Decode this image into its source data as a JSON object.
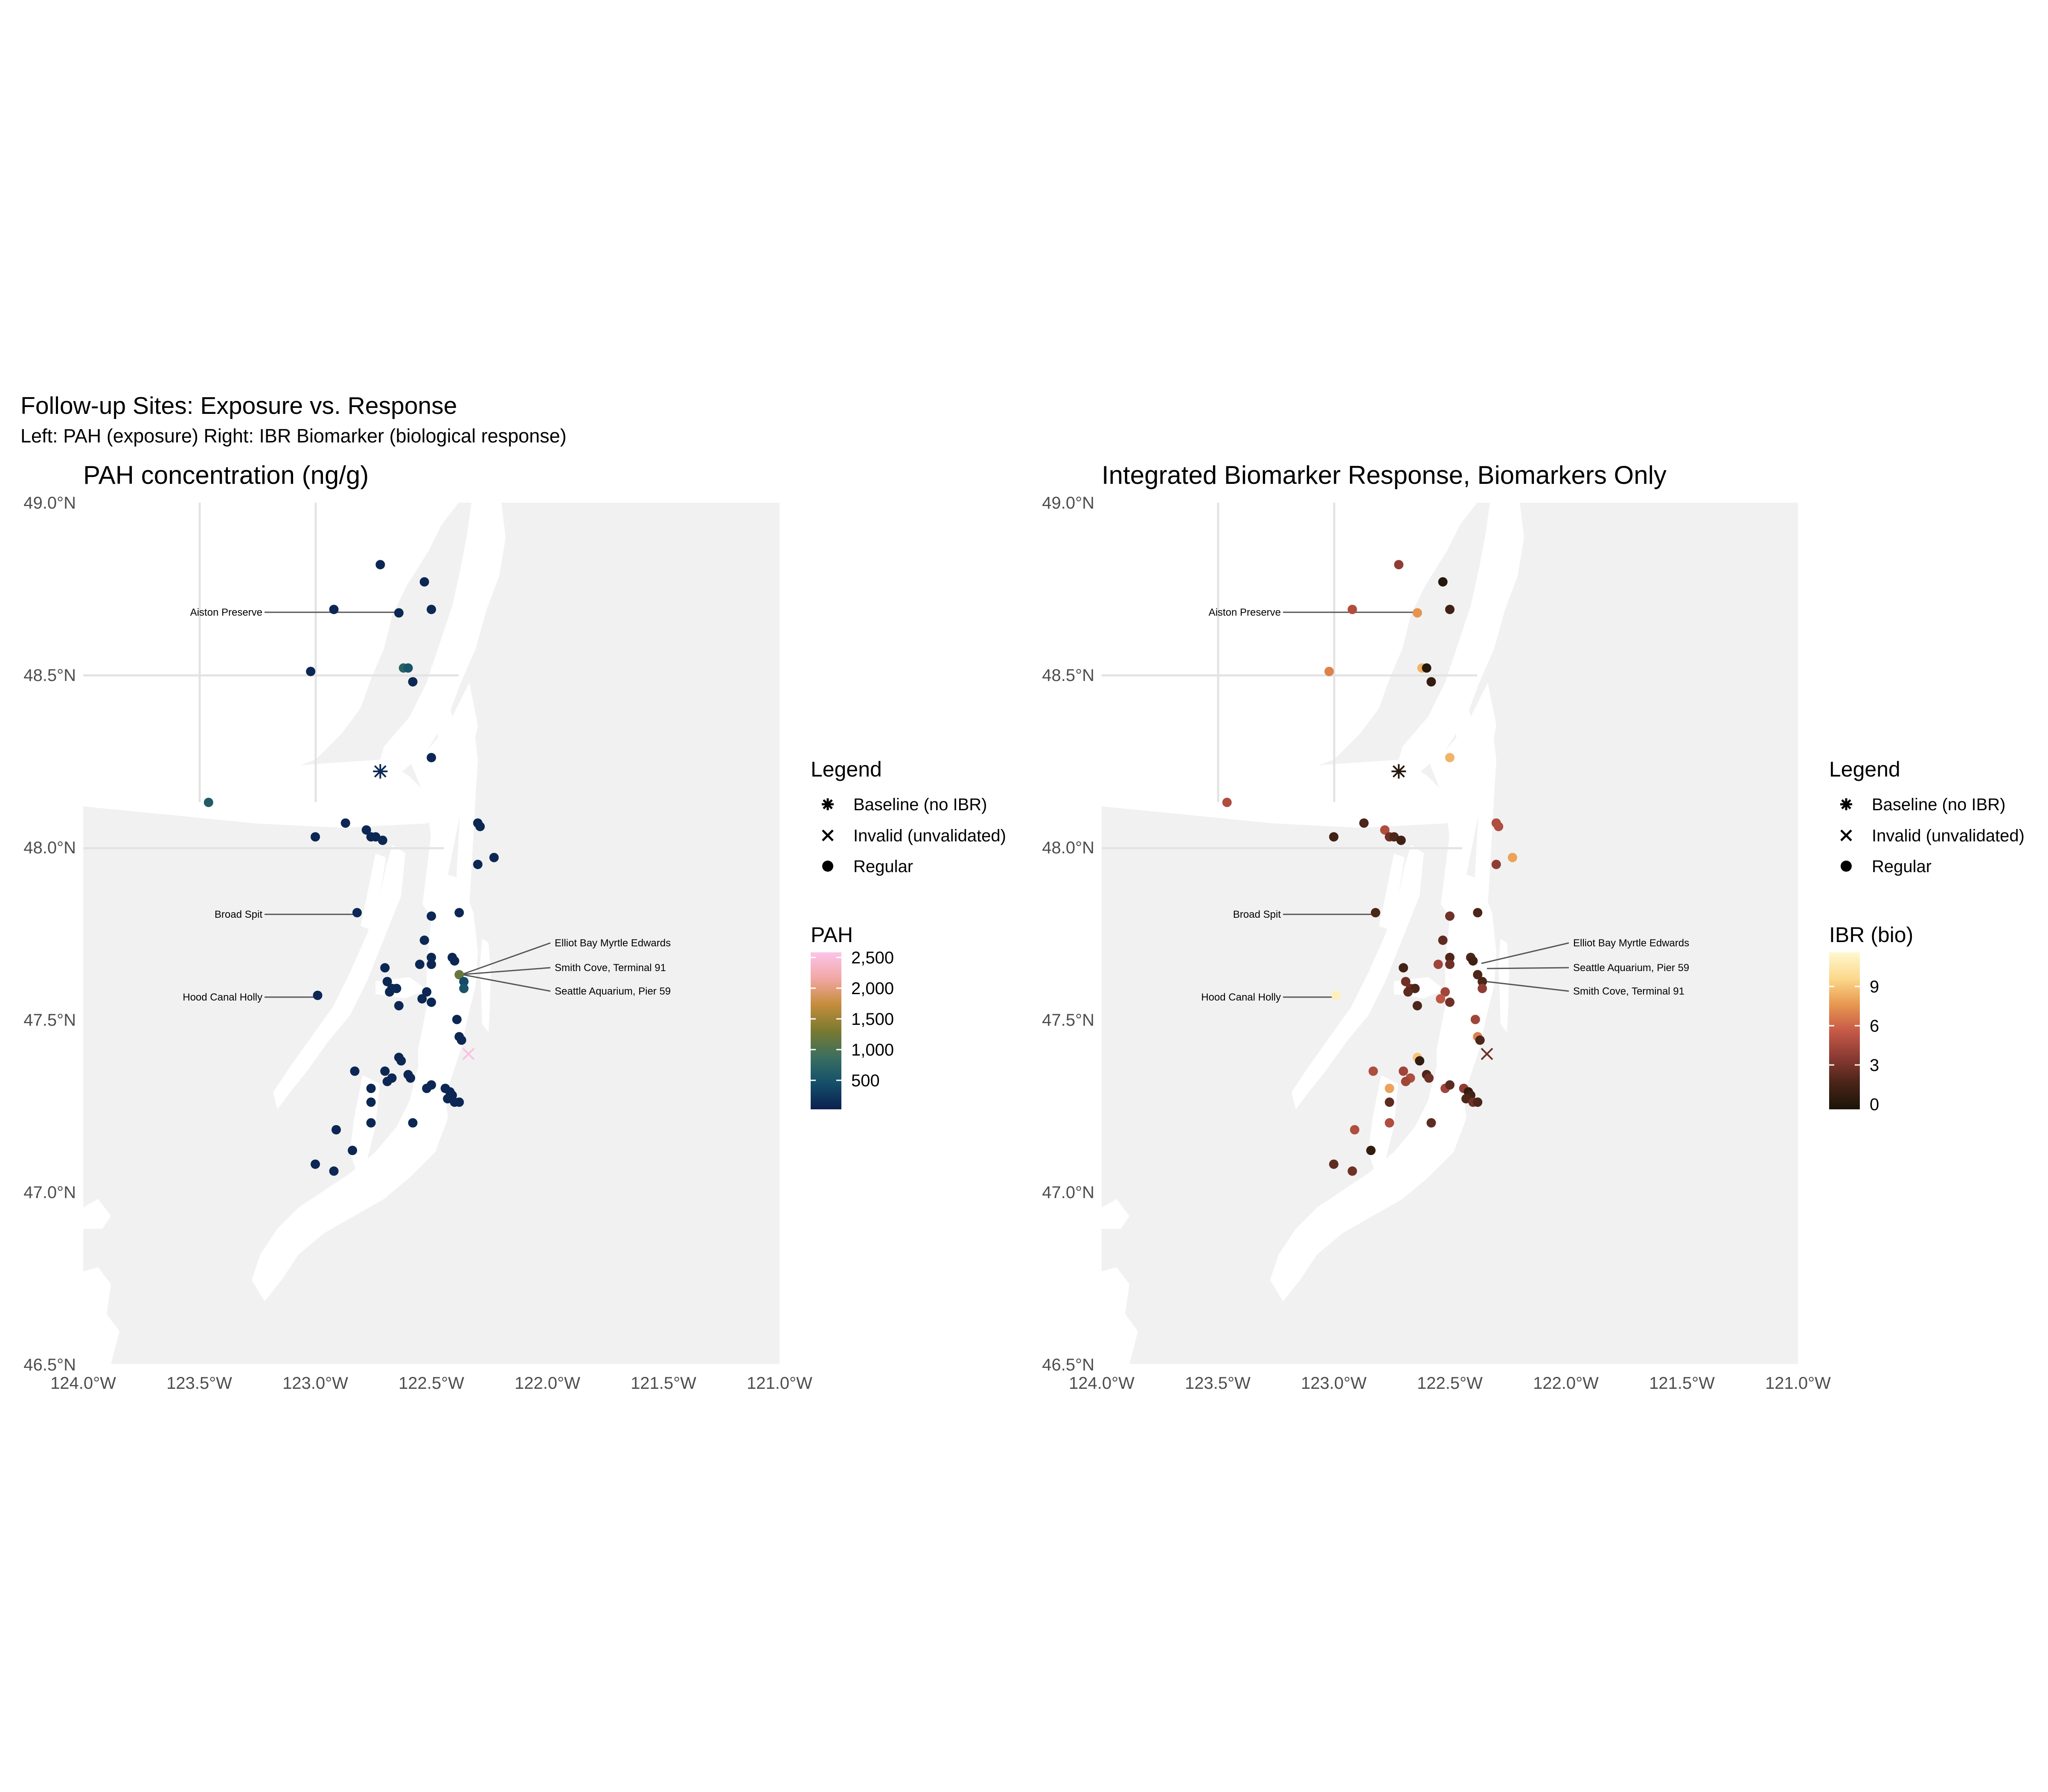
{
  "figure": {
    "title": "Follow-up Sites: Exposure vs. Response",
    "subtitle": "Left: PAH (exposure)   Right: IBR Biomarker (biological response)"
  },
  "axes": {
    "x_ticks": [
      "124.0°W",
      "123.5°W",
      "123.0°W",
      "122.5°W",
      "122.0°W",
      "121.5°W",
      "121.0°W"
    ],
    "y_ticks": [
      "49.0°N",
      "48.5°N",
      "48.0°N",
      "47.5°N",
      "47.0°N",
      "46.5°N"
    ],
    "xlim": [
      -124.0,
      -121.0
    ],
    "ylim": [
      46.5,
      49.0
    ],
    "grid": true
  },
  "shape_legend": {
    "title": "Legend",
    "items": [
      {
        "symbol": "asterisk",
        "label": "Baseline (no IBR)"
      },
      {
        "symbol": "cross",
        "label": "Invalid (unvalidated)"
      },
      {
        "symbol": "dot",
        "label": "Regular"
      }
    ]
  },
  "colors": {
    "land": "#f1f1f1",
    "water": "#ffffff",
    "grid": "#e3e3e3",
    "callout_line": "#555555",
    "pah_scale": [
      "#0b2050",
      "#14506a",
      "#3a6e60",
      "#7a7a30",
      "#c68d3c",
      "#f1a7a3",
      "#fcc4ea"
    ],
    "ibr_scale": [
      "#1a1408",
      "#4a2418",
      "#8a3a32",
      "#c65a48",
      "#e89850",
      "#fbd88a",
      "#fff8d0"
    ]
  },
  "chart_data": [
    {
      "type": "scatter",
      "title": "PAH concentration (ng/g)",
      "color_legend": {
        "title": "PAH",
        "ticks": [
          "2,500",
          "2,000",
          "1,500",
          "1,000",
          "500"
        ],
        "range": [
          0,
          2650
        ]
      },
      "callouts": [
        "Aiston Preserve",
        "Broad Spit",
        "Hood Canal Holly",
        "Elliot Bay Myrtle Edwards",
        "Smith Cove, Terminal 91",
        "Seattle Aquarium, Pier 59"
      ],
      "sites": [
        {
          "lon": -122.72,
          "lat": 48.82,
          "v": 60,
          "shape": "dot"
        },
        {
          "lon": -122.53,
          "lat": 48.77,
          "v": 60,
          "shape": "dot"
        },
        {
          "lon": -122.5,
          "lat": 48.69,
          "v": 70,
          "shape": "dot"
        },
        {
          "lon": -122.92,
          "lat": 48.69,
          "v": 60,
          "shape": "dot"
        },
        {
          "lon": -122.64,
          "lat": 48.68,
          "v": 60,
          "shape": "dot"
        },
        {
          "lon": -122.62,
          "lat": 48.52,
          "v": 700,
          "shape": "dot"
        },
        {
          "lon": -122.6,
          "lat": 48.52,
          "v": 500,
          "shape": "dot"
        },
        {
          "lon": -122.58,
          "lat": 48.48,
          "v": 60,
          "shape": "dot"
        },
        {
          "lon": -123.02,
          "lat": 48.51,
          "v": 60,
          "shape": "dot"
        },
        {
          "lon": -122.5,
          "lat": 48.26,
          "v": 60,
          "shape": "dot"
        },
        {
          "lon": -122.72,
          "lat": 48.22,
          "v": 80,
          "shape": "asterisk"
        },
        {
          "lon": -123.46,
          "lat": 48.13,
          "v": 600,
          "shape": "dot"
        },
        {
          "lon": -122.3,
          "lat": 48.07,
          "v": 60,
          "shape": "dot"
        },
        {
          "lon": -122.29,
          "lat": 48.06,
          "v": 60,
          "shape": "dot"
        },
        {
          "lon": -122.87,
          "lat": 48.07,
          "v": 60,
          "shape": "dot"
        },
        {
          "lon": -122.78,
          "lat": 48.05,
          "v": 60,
          "shape": "dot"
        },
        {
          "lon": -122.76,
          "lat": 48.03,
          "v": 60,
          "shape": "dot"
        },
        {
          "lon": -122.74,
          "lat": 48.03,
          "v": 60,
          "shape": "dot"
        },
        {
          "lon": -122.71,
          "lat": 48.02,
          "v": 60,
          "shape": "dot"
        },
        {
          "lon": -123.0,
          "lat": 48.03,
          "v": 60,
          "shape": "dot"
        },
        {
          "lon": -122.23,
          "lat": 47.97,
          "v": 60,
          "shape": "dot"
        },
        {
          "lon": -122.3,
          "lat": 47.95,
          "v": 60,
          "shape": "dot"
        },
        {
          "lon": -122.38,
          "lat": 47.81,
          "v": 60,
          "shape": "dot"
        },
        {
          "lon": -122.5,
          "lat": 47.8,
          "v": 60,
          "shape": "dot"
        },
        {
          "lon": -122.82,
          "lat": 47.81,
          "v": 60,
          "shape": "dot"
        },
        {
          "lon": -122.53,
          "lat": 47.73,
          "v": 60,
          "shape": "dot"
        },
        {
          "lon": -122.5,
          "lat": 47.68,
          "v": 60,
          "shape": "dot"
        },
        {
          "lon": -122.41,
          "lat": 47.68,
          "v": 60,
          "shape": "dot"
        },
        {
          "lon": -122.4,
          "lat": 47.67,
          "v": 60,
          "shape": "dot"
        },
        {
          "lon": -122.5,
          "lat": 47.66,
          "v": 60,
          "shape": "dot"
        },
        {
          "lon": -122.55,
          "lat": 47.66,
          "v": 60,
          "shape": "dot"
        },
        {
          "lon": -122.7,
          "lat": 47.65,
          "v": 60,
          "shape": "dot"
        },
        {
          "lon": -122.38,
          "lat": 47.63,
          "v": 1200,
          "shape": "dot"
        },
        {
          "lon": -122.36,
          "lat": 47.61,
          "v": 400,
          "shape": "dot"
        },
        {
          "lon": -122.36,
          "lat": 47.59,
          "v": 500,
          "shape": "dot"
        },
        {
          "lon": -122.69,
          "lat": 47.61,
          "v": 60,
          "shape": "dot"
        },
        {
          "lon": -122.67,
          "lat": 47.59,
          "v": 60,
          "shape": "dot"
        },
        {
          "lon": -122.65,
          "lat": 47.59,
          "v": 60,
          "shape": "dot"
        },
        {
          "lon": -122.52,
          "lat": 47.58,
          "v": 60,
          "shape": "dot"
        },
        {
          "lon": -122.54,
          "lat": 47.56,
          "v": 60,
          "shape": "dot"
        },
        {
          "lon": -122.68,
          "lat": 47.58,
          "v": 60,
          "shape": "dot"
        },
        {
          "lon": -122.64,
          "lat": 47.54,
          "v": 60,
          "shape": "dot"
        },
        {
          "lon": -122.5,
          "lat": 47.55,
          "v": 60,
          "shape": "dot"
        },
        {
          "lon": -122.99,
          "lat": 47.57,
          "v": 60,
          "shape": "dot"
        },
        {
          "lon": -122.39,
          "lat": 47.5,
          "v": 60,
          "shape": "dot"
        },
        {
          "lon": -122.38,
          "lat": 47.45,
          "v": 60,
          "shape": "dot"
        },
        {
          "lon": -122.37,
          "lat": 47.44,
          "v": 60,
          "shape": "dot"
        },
        {
          "lon": -122.34,
          "lat": 47.4,
          "v": 2600,
          "shape": "cross"
        },
        {
          "lon": -122.64,
          "lat": 47.39,
          "v": 60,
          "shape": "dot"
        },
        {
          "lon": -122.63,
          "lat": 47.38,
          "v": 60,
          "shape": "dot"
        },
        {
          "lon": -122.83,
          "lat": 47.35,
          "v": 60,
          "shape": "dot"
        },
        {
          "lon": -122.7,
          "lat": 47.35,
          "v": 60,
          "shape": "dot"
        },
        {
          "lon": -122.67,
          "lat": 47.33,
          "v": 60,
          "shape": "dot"
        },
        {
          "lon": -122.6,
          "lat": 47.34,
          "v": 60,
          "shape": "dot"
        },
        {
          "lon": -122.59,
          "lat": 47.33,
          "v": 60,
          "shape": "dot"
        },
        {
          "lon": -122.69,
          "lat": 47.32,
          "v": 60,
          "shape": "dot"
        },
        {
          "lon": -122.76,
          "lat": 47.3,
          "v": 60,
          "shape": "dot"
        },
        {
          "lon": -122.52,
          "lat": 47.3,
          "v": 60,
          "shape": "dot"
        },
        {
          "lon": -122.5,
          "lat": 47.31,
          "v": 60,
          "shape": "dot"
        },
        {
          "lon": -122.44,
          "lat": 47.3,
          "v": 60,
          "shape": "dot"
        },
        {
          "lon": -122.42,
          "lat": 47.29,
          "v": 60,
          "shape": "dot"
        },
        {
          "lon": -122.41,
          "lat": 47.28,
          "v": 60,
          "shape": "dot"
        },
        {
          "lon": -122.43,
          "lat": 47.27,
          "v": 60,
          "shape": "dot"
        },
        {
          "lon": -122.4,
          "lat": 47.26,
          "v": 60,
          "shape": "dot"
        },
        {
          "lon": -122.38,
          "lat": 47.26,
          "v": 60,
          "shape": "dot"
        },
        {
          "lon": -122.76,
          "lat": 47.26,
          "v": 60,
          "shape": "dot"
        },
        {
          "lon": -122.76,
          "lat": 47.2,
          "v": 60,
          "shape": "dot"
        },
        {
          "lon": -122.58,
          "lat": 47.2,
          "v": 60,
          "shape": "dot"
        },
        {
          "lon": -122.91,
          "lat": 47.18,
          "v": 60,
          "shape": "dot"
        },
        {
          "lon": -122.84,
          "lat": 47.12,
          "v": 60,
          "shape": "dot"
        },
        {
          "lon": -123.0,
          "lat": 47.08,
          "v": 60,
          "shape": "dot"
        },
        {
          "lon": -122.92,
          "lat": 47.06,
          "v": 60,
          "shape": "dot"
        }
      ]
    },
    {
      "type": "scatter",
      "title": "Integrated Biomarker Response, Biomarkers Only",
      "color_legend": {
        "title": "IBR (bio)",
        "ticks": [
          "9",
          "6",
          "3",
          "0"
        ],
        "range": [
          0,
          11.5
        ]
      },
      "callouts": [
        "Aiston Preserve",
        "Broad Spit",
        "Hood Canal Holly",
        "Elliot Bay Myrtle Edwards",
        "Seattle Aquarium, Pier 59",
        "Smith Cove, Terminal 91"
      ],
      "sites": [
        {
          "lon": -122.72,
          "lat": 48.82,
          "v": 4,
          "shape": "dot"
        },
        {
          "lon": -122.53,
          "lat": 48.77,
          "v": 0.5,
          "shape": "dot"
        },
        {
          "lon": -122.5,
          "lat": 48.69,
          "v": 1.5,
          "shape": "dot"
        },
        {
          "lon": -122.92,
          "lat": 48.69,
          "v": 5,
          "shape": "dot"
        },
        {
          "lon": -122.64,
          "lat": 48.68,
          "v": 7.5,
          "shape": "dot"
        },
        {
          "lon": -122.62,
          "lat": 48.52,
          "v": 8.5,
          "shape": "dot"
        },
        {
          "lon": -122.6,
          "lat": 48.52,
          "v": 0.5,
          "shape": "dot"
        },
        {
          "lon": -122.58,
          "lat": 48.48,
          "v": 1,
          "shape": "dot"
        },
        {
          "lon": -123.02,
          "lat": 48.51,
          "v": 7,
          "shape": "dot"
        },
        {
          "lon": -122.5,
          "lat": 48.26,
          "v": 8.5,
          "shape": "dot"
        },
        {
          "lon": -122.72,
          "lat": 48.22,
          "v": 0.5,
          "shape": "asterisk"
        },
        {
          "lon": -123.46,
          "lat": 48.13,
          "v": 5,
          "shape": "dot"
        },
        {
          "lon": -122.3,
          "lat": 48.07,
          "v": 5,
          "shape": "dot"
        },
        {
          "lon": -122.29,
          "lat": 48.06,
          "v": 5,
          "shape": "dot"
        },
        {
          "lon": -122.87,
          "lat": 48.07,
          "v": 2,
          "shape": "dot"
        },
        {
          "lon": -122.78,
          "lat": 48.05,
          "v": 5,
          "shape": "dot"
        },
        {
          "lon": -122.76,
          "lat": 48.03,
          "v": 3,
          "shape": "dot"
        },
        {
          "lon": -122.74,
          "lat": 48.03,
          "v": 2,
          "shape": "dot"
        },
        {
          "lon": -122.71,
          "lat": 48.02,
          "v": 1.5,
          "shape": "dot"
        },
        {
          "lon": -123.0,
          "lat": 48.03,
          "v": 1.5,
          "shape": "dot"
        },
        {
          "lon": -122.23,
          "lat": 47.97,
          "v": 8,
          "shape": "dot"
        },
        {
          "lon": -122.3,
          "lat": 47.95,
          "v": 4,
          "shape": "dot"
        },
        {
          "lon": -122.38,
          "lat": 47.81,
          "v": 2,
          "shape": "dot"
        },
        {
          "lon": -122.5,
          "lat": 47.8,
          "v": 3,
          "shape": "dot"
        },
        {
          "lon": -122.82,
          "lat": 47.81,
          "v": 2,
          "shape": "dot"
        },
        {
          "lon": -122.53,
          "lat": 47.73,
          "v": 2.5,
          "shape": "dot"
        },
        {
          "lon": -122.5,
          "lat": 47.68,
          "v": 2,
          "shape": "dot"
        },
        {
          "lon": -122.41,
          "lat": 47.68,
          "v": 2,
          "shape": "dot"
        },
        {
          "lon": -122.4,
          "lat": 47.67,
          "v": 1.5,
          "shape": "dot"
        },
        {
          "lon": -122.5,
          "lat": 47.66,
          "v": 3,
          "shape": "dot"
        },
        {
          "lon": -122.55,
          "lat": 47.66,
          "v": 4.5,
          "shape": "dot"
        },
        {
          "lon": -122.7,
          "lat": 47.65,
          "v": 1.5,
          "shape": "dot"
        },
        {
          "lon": -122.38,
          "lat": 47.63,
          "v": 2,
          "shape": "dot"
        },
        {
          "lon": -122.36,
          "lat": 47.61,
          "v": 2,
          "shape": "dot"
        },
        {
          "lon": -122.36,
          "lat": 47.59,
          "v": 4,
          "shape": "dot"
        },
        {
          "lon": -122.69,
          "lat": 47.61,
          "v": 3,
          "shape": "dot"
        },
        {
          "lon": -122.67,
          "lat": 47.59,
          "v": 3,
          "shape": "dot"
        },
        {
          "lon": -122.65,
          "lat": 47.59,
          "v": 2,
          "shape": "dot"
        },
        {
          "lon": -122.52,
          "lat": 47.58,
          "v": 4.5,
          "shape": "dot"
        },
        {
          "lon": -122.54,
          "lat": 47.56,
          "v": 5.5,
          "shape": "dot"
        },
        {
          "lon": -122.68,
          "lat": 47.58,
          "v": 2.5,
          "shape": "dot"
        },
        {
          "lon": -122.64,
          "lat": 47.54,
          "v": 2,
          "shape": "dot"
        },
        {
          "lon": -122.5,
          "lat": 47.55,
          "v": 3,
          "shape": "dot"
        },
        {
          "lon": -122.99,
          "lat": 47.57,
          "v": 11,
          "shape": "dot"
        },
        {
          "lon": -122.39,
          "lat": 47.5,
          "v": 4.5,
          "shape": "dot"
        },
        {
          "lon": -122.38,
          "lat": 47.45,
          "v": 7,
          "shape": "dot"
        },
        {
          "lon": -122.37,
          "lat": 47.44,
          "v": 2,
          "shape": "dot"
        },
        {
          "lon": -122.34,
          "lat": 47.4,
          "v": 3,
          "shape": "cross"
        },
        {
          "lon": -122.64,
          "lat": 47.39,
          "v": 9,
          "shape": "dot"
        },
        {
          "lon": -122.63,
          "lat": 47.38,
          "v": 1,
          "shape": "dot"
        },
        {
          "lon": -122.83,
          "lat": 47.35,
          "v": 5,
          "shape": "dot"
        },
        {
          "lon": -122.7,
          "lat": 47.35,
          "v": 4.5,
          "shape": "dot"
        },
        {
          "lon": -122.67,
          "lat": 47.33,
          "v": 5,
          "shape": "dot"
        },
        {
          "lon": -122.6,
          "lat": 47.34,
          "v": 2,
          "shape": "dot"
        },
        {
          "lon": -122.59,
          "lat": 47.33,
          "v": 3,
          "shape": "dot"
        },
        {
          "lon": -122.69,
          "lat": 47.32,
          "v": 4.5,
          "shape": "dot"
        },
        {
          "lon": -122.76,
          "lat": 47.3,
          "v": 8,
          "shape": "dot"
        },
        {
          "lon": -122.52,
          "lat": 47.3,
          "v": 4.5,
          "shape": "dot"
        },
        {
          "lon": -122.5,
          "lat": 47.31,
          "v": 2.5,
          "shape": "dot"
        },
        {
          "lon": -122.44,
          "lat": 47.3,
          "v": 4,
          "shape": "dot"
        },
        {
          "lon": -122.42,
          "lat": 47.29,
          "v": 1,
          "shape": "dot"
        },
        {
          "lon": -122.41,
          "lat": 47.28,
          "v": 1.5,
          "shape": "dot"
        },
        {
          "lon": -122.43,
          "lat": 47.27,
          "v": 2,
          "shape": "dot"
        },
        {
          "lon": -122.4,
          "lat": 47.26,
          "v": 3,
          "shape": "dot"
        },
        {
          "lon": -122.38,
          "lat": 47.26,
          "v": 2,
          "shape": "dot"
        },
        {
          "lon": -122.76,
          "lat": 47.26,
          "v": 2.5,
          "shape": "dot"
        },
        {
          "lon": -122.76,
          "lat": 47.2,
          "v": 5,
          "shape": "dot"
        },
        {
          "lon": -122.58,
          "lat": 47.2,
          "v": 2.5,
          "shape": "dot"
        },
        {
          "lon": -122.91,
          "lat": 47.18,
          "v": 5,
          "shape": "dot"
        },
        {
          "lon": -122.84,
          "lat": 47.12,
          "v": 1,
          "shape": "dot"
        },
        {
          "lon": -123.0,
          "lat": 47.08,
          "v": 2.5,
          "shape": "dot"
        },
        {
          "lon": -122.92,
          "lat": 47.06,
          "v": 3,
          "shape": "dot"
        }
      ]
    }
  ]
}
